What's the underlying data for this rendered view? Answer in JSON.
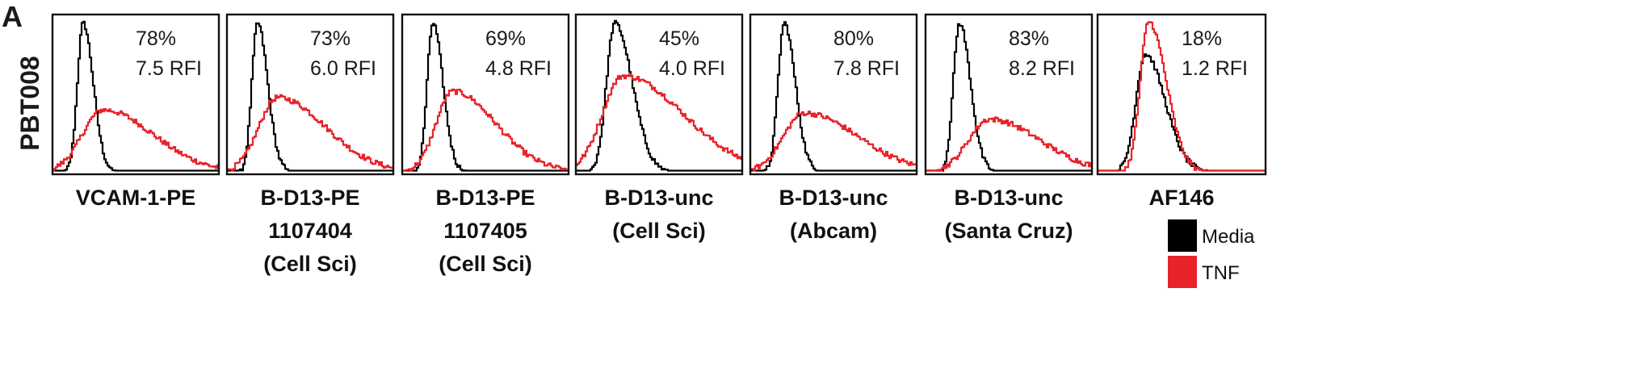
{
  "panel_label": "A",
  "row_label": "PBT008",
  "colors": {
    "media": "#000000",
    "tnf": "#e8242a"
  },
  "legend": [
    {
      "label": "Media",
      "color": "#000000"
    },
    {
      "label": "TNF",
      "color": "#e8242a"
    }
  ],
  "chart_data": [
    {
      "type": "area",
      "label_lines": [
        "VCAM-1-PE"
      ],
      "stats": [
        "78%",
        "7.5 RFI"
      ],
      "series": [
        {
          "name": "Media",
          "peak": 0.18,
          "width": 0.055,
          "height": 0.96,
          "skew": 1.1
        },
        {
          "name": "TNF",
          "peak": 0.3,
          "width": 0.2,
          "height": 0.4,
          "skew": 1.5
        }
      ]
    },
    {
      "type": "area",
      "label_lines": [
        "B-D13-PE",
        "1107404",
        "(Cell Sci)"
      ],
      "stats": [
        "73%",
        "6.0 RFI"
      ],
      "series": [
        {
          "name": "Media",
          "peak": 0.18,
          "width": 0.055,
          "height": 0.96,
          "skew": 1.1
        },
        {
          "name": "TNF",
          "peak": 0.3,
          "width": 0.18,
          "height": 0.48,
          "skew": 1.6
        }
      ]
    },
    {
      "type": "area",
      "label_lines": [
        "B-D13-PE",
        "1107405",
        "(Cell Sci)"
      ],
      "stats": [
        "69%",
        "4.8 RFI"
      ],
      "series": [
        {
          "name": "Media",
          "peak": 0.18,
          "width": 0.055,
          "height": 0.96,
          "skew": 1.1
        },
        {
          "name": "TNF",
          "peak": 0.3,
          "width": 0.16,
          "height": 0.52,
          "skew": 1.6
        }
      ]
    },
    {
      "type": "area",
      "label_lines": [
        "B-D13-unc",
        "(Cell Sci)"
      ],
      "stats": [
        "45%",
        "4.0 RFI"
      ],
      "series": [
        {
          "name": "Media",
          "peak": 0.23,
          "width": 0.08,
          "height": 0.96,
          "skew": 1.3
        },
        {
          "name": "TNF",
          "peak": 0.28,
          "width": 0.2,
          "height": 0.62,
          "skew": 1.8
        }
      ]
    },
    {
      "type": "area",
      "label_lines": [
        "B-D13-unc",
        "(Abcam)"
      ],
      "stats": [
        "80%",
        "7.8 RFI"
      ],
      "series": [
        {
          "name": "Media",
          "peak": 0.2,
          "width": 0.06,
          "height": 0.96,
          "skew": 1.1
        },
        {
          "name": "TNF",
          "peak": 0.32,
          "width": 0.2,
          "height": 0.38,
          "skew": 1.6
        }
      ]
    },
    {
      "type": "area",
      "label_lines": [
        "B-D13-unc",
        "(Santa Cruz)"
      ],
      "stats": [
        "83%",
        "8.2 RFI"
      ],
      "series": [
        {
          "name": "Media",
          "peak": 0.2,
          "width": 0.06,
          "height": 0.96,
          "skew": 1.1
        },
        {
          "name": "TNF",
          "peak": 0.38,
          "width": 0.2,
          "height": 0.34,
          "skew": 1.5
        }
      ]
    },
    {
      "type": "area",
      "label_lines": [
        "AF146"
      ],
      "stats": [
        "18%",
        "1.2 RFI"
      ],
      "series": [
        {
          "name": "Media",
          "peak": 0.28,
          "width": 0.09,
          "height": 0.76,
          "skew": 1.3
        },
        {
          "name": "TNF",
          "peak": 0.3,
          "width": 0.08,
          "height": 0.97,
          "skew": 1.3
        }
      ]
    }
  ]
}
